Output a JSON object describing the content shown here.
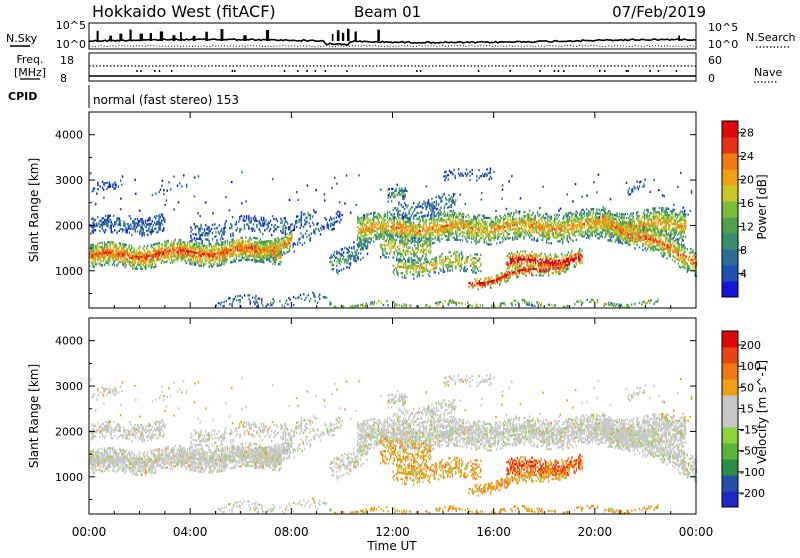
{
  "header": {
    "station": "Hokkaido West (fitACF)",
    "beam": "Beam 01",
    "date": "07/Feb/2019"
  },
  "strips": {
    "nsky_label": "N.Sky",
    "nsearch_label": "N.Search",
    "noise_ticks_left": [
      "10^5",
      "10^0"
    ],
    "noise_ticks_right": [
      "10^5",
      "10^0"
    ],
    "freq_label_1": "Freq.",
    "freq_label_2": "[MHz]",
    "freq_ticks": [
      "18",
      "8"
    ],
    "nave_label": "Nave",
    "nave_ticks": [
      "60",
      "0"
    ],
    "cpid_label": "CPID",
    "cpid_value": "normal (fast stereo) 153"
  },
  "colors": {
    "power_scale": [
      "#1414dc",
      "#1e50b4",
      "#2d6e96",
      "#3c8c6e",
      "#50a050",
      "#78be3c",
      "#c8c828",
      "#f0a014",
      "#f07814",
      "#e63214",
      "#dc0a0a"
    ],
    "velocity_scale": [
      "#1e28c8",
      "#2850aa",
      "#2d8c46",
      "#5ab43c",
      "#8cd23c",
      "#c8c8c8",
      "#c8c8c8",
      "#f0a014",
      "#f07814",
      "#e64614",
      "#dc0a0a"
    ]
  },
  "chart_data": [
    {
      "type": "heatmap",
      "panel": "power",
      "ylabel": "Slant Range [km]",
      "yticks": [
        "1000",
        "2000",
        "3000",
        "4000"
      ],
      "ylim": [
        180,
        4500
      ],
      "xticks": [
        "00:00",
        "04:00",
        "08:00",
        "12:00",
        "16:00",
        "20:00",
        "00:00"
      ],
      "xlim_hours": [
        0,
        24
      ],
      "colorbar_label": "Power [dB]",
      "colorbar_ticks": [
        "4",
        "8",
        "12",
        "16",
        "20",
        "24",
        "28"
      ],
      "colorbar_range": [
        0,
        30
      ]
    },
    {
      "type": "heatmap",
      "panel": "velocity",
      "ylabel": "Slant Range [km]",
      "yticks": [
        "1000",
        "2000",
        "3000",
        "4000"
      ],
      "ylim": [
        180,
        4500
      ],
      "xticks": [
        "00:00",
        "04:00",
        "08:00",
        "12:00",
        "16:00",
        "20:00",
        "00:00"
      ],
      "xlim_hours": [
        0,
        24
      ],
      "xlabel": "Time UT",
      "colorbar_label": "Velocity [m s^-1]",
      "colorbar_ticks": [
        "200",
        "100",
        "50",
        "15",
        "-15",
        "-50",
        "-100",
        "-200"
      ],
      "colorbar_range": [
        -250,
        250
      ]
    }
  ]
}
